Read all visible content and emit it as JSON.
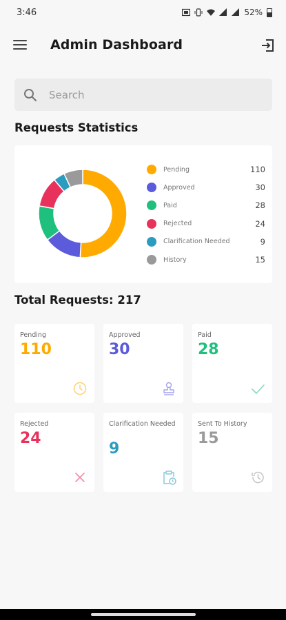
{
  "status_bar": {
    "time": "3:46",
    "battery": "52%"
  },
  "header": {
    "title": "Admin Dashboard"
  },
  "search": {
    "placeholder": "Search",
    "value": ""
  },
  "statistics": {
    "title": "Requests Statistics",
    "legend": [
      {
        "label": "Pending",
        "value": "110",
        "color": "#FFAA00"
      },
      {
        "label": "Approved",
        "value": "30",
        "color": "#5B5BDB"
      },
      {
        "label": "Paid",
        "value": "28",
        "color": "#1FC07E"
      },
      {
        "label": "Rejected",
        "value": "24",
        "color": "#E8325C"
      },
      {
        "label": "Clarification Needed",
        "value": "9",
        "color": "#2B9CC0"
      },
      {
        "label": "History",
        "value": "15",
        "color": "#9A9A9A"
      }
    ]
  },
  "chart_data": {
    "type": "pie",
    "categories": [
      "Pending",
      "Approved",
      "Paid",
      "Rejected",
      "Clarification Needed",
      "History"
    ],
    "values": [
      110,
      30,
      28,
      24,
      9,
      15
    ],
    "colors": [
      "#FFAA00",
      "#5B5BDB",
      "#1FC07E",
      "#E8325C",
      "#2B9CC0",
      "#9A9A9A"
    ],
    "donut": true
  },
  "total": {
    "label": "Total Requests: 217"
  },
  "tiles": [
    {
      "label": "Pending",
      "value": "110",
      "color": "#FFAA00",
      "icon": "clock-icon"
    },
    {
      "label": "Approved",
      "value": "30",
      "color": "#5B5BDB",
      "icon": "stamp-icon"
    },
    {
      "label": "Paid",
      "value": "28",
      "color": "#1FC07E",
      "icon": "check-icon"
    },
    {
      "label": "Rejected",
      "value": "24",
      "color": "#E8325C",
      "icon": "close-icon"
    },
    {
      "label": "Clarification Needed",
      "value": "9",
      "color": "#2B9CC0",
      "icon": "clipboard-clock-icon"
    },
    {
      "label": "Sent To History",
      "value": "15",
      "color": "#9A9A9A",
      "icon": "history-icon"
    }
  ]
}
